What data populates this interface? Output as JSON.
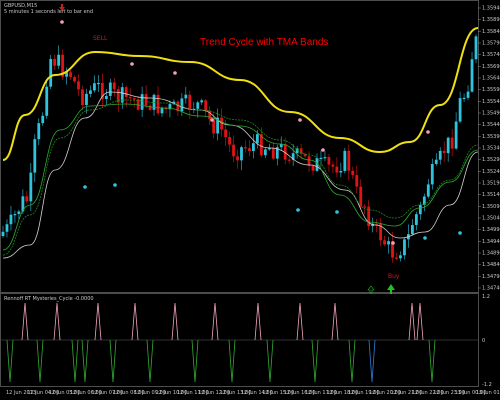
{
  "header": {
    "symbol": "GBPUSD,M15",
    "info": "5 minutes 1 seconds left to bar end"
  },
  "overlay": {
    "title": "Trend Cycle with TMA Bands",
    "title_color": "#ff0000",
    "sell_label": "SELL",
    "buy_label": "Buy"
  },
  "indicator": {
    "label": "Rennoff RT Mysteries_Cycle -0.0000",
    "levels": [
      "1.2",
      "0",
      "-1.2"
    ]
  },
  "colors": {
    "bull": "#2ec4de",
    "bear": "#e01414",
    "upper_tma": "#f0e010",
    "lower_tma": "#d0d0d0",
    "mid_tma": "#1a8a1a",
    "mid_tma2": "#2eaa2e",
    "dot_upper": "#f2a0b8",
    "dot_lower": "#2ec4de",
    "cycle_pos": "#f2a0b8",
    "cycle_neg": "#2eaa2e",
    "cycle_neg_blue": "#2a7bd8",
    "buy_arrow": "#20c020"
  },
  "price_axis": [
    "1.35940",
    "1.35890",
    "1.35840",
    "1.35790",
    "1.35740",
    "1.35690",
    "1.35640",
    "1.35590",
    "1.35540",
    "1.35490",
    "1.35440",
    "1.35390",
    "1.35340",
    "1.35290",
    "1.35240",
    "1.35190",
    "1.35140",
    "1.35090",
    "1.35040",
    "1.34990",
    "1.34940",
    "1.34890",
    "1.34840",
    "1.34790",
    "1.34740"
  ],
  "time_axis": [
    "12 Jun 2013",
    "12 Jun 04:00",
    "12 Jun 05:00",
    "12 Jun 06:00",
    "12 Jun 07:00",
    "12 Jun 08:00",
    "12 Jun 09:00",
    "12 Jun 10:00",
    "12 Jun 11:00",
    "12 Jun 12:00",
    "12 Jun 13:00",
    "12 Jun 14:00",
    "12 Jun 15:00",
    "12 Jun 16:00",
    "12 Jun 17:00",
    "12 Jun 18:00",
    "12 Jun 19:00",
    "12 Jun 20:00",
    "12 Jun 21:00",
    "12 Jun 22:00",
    "12 Jun 23:00",
    "13 Jun 00:00",
    "13 Jun 01:00"
  ]
}
